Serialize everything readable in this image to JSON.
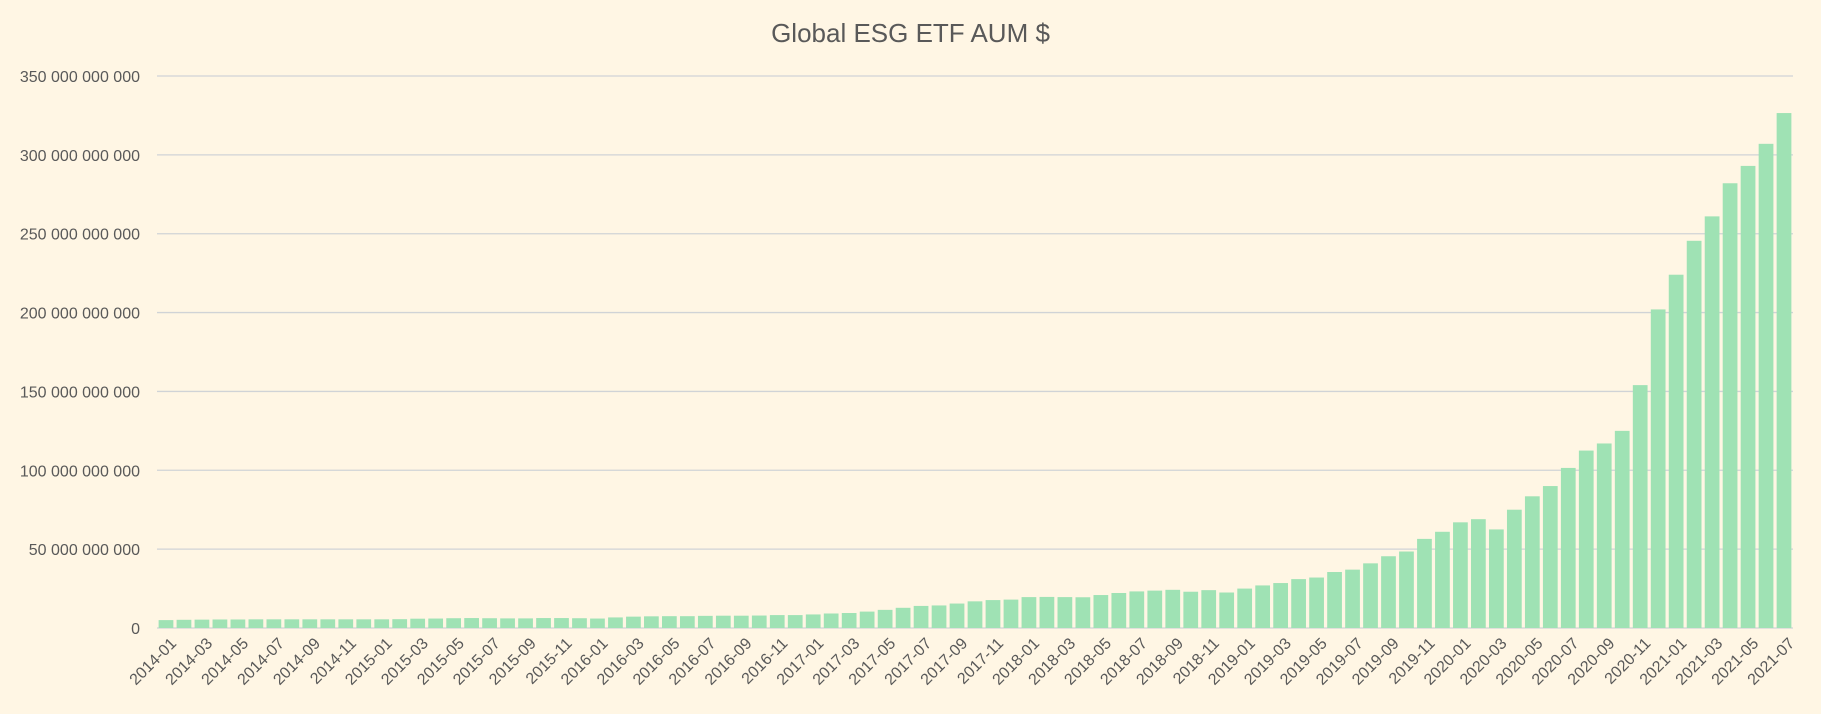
{
  "chart_data": {
    "type": "bar",
    "title": "Global ESG ETF AUM $",
    "xlabel": "",
    "ylabel": "",
    "ylim": [
      0,
      350000000000
    ],
    "yticks": [
      0,
      50000000000,
      100000000000,
      150000000000,
      200000000000,
      250000000000,
      300000000000,
      350000000000
    ],
    "ytick_labels": [
      "0",
      "50 000 000 000",
      "100 000 000 000",
      "150 000 000 000",
      "200 000 000 000",
      "250 000 000 000",
      "300 000 000 000",
      "350 000 000 000"
    ],
    "grid": true,
    "legend": "none",
    "colors": {
      "bar": "#9FE2B4",
      "grid": "#D0D3D6",
      "text": "#595959",
      "background": "#FFF6E4"
    },
    "categories": [
      "2014-01",
      "2014-02",
      "2014-03",
      "2014-04",
      "2014-05",
      "2014-06",
      "2014-07",
      "2014-08",
      "2014-09",
      "2014-10",
      "2014-11",
      "2014-12",
      "2015-01",
      "2015-02",
      "2015-03",
      "2015-04",
      "2015-05",
      "2015-06",
      "2015-07",
      "2015-08",
      "2015-09",
      "2015-10",
      "2015-11",
      "2015-12",
      "2016-01",
      "2016-02",
      "2016-03",
      "2016-04",
      "2016-05",
      "2016-06",
      "2016-07",
      "2016-08",
      "2016-09",
      "2016-10",
      "2016-11",
      "2016-12",
      "2017-01",
      "2017-02",
      "2017-03",
      "2017-04",
      "2017-05",
      "2017-06",
      "2017-07",
      "2017-08",
      "2017-09",
      "2017-10",
      "2017-11",
      "2017-12",
      "2018-01",
      "2018-02",
      "2018-03",
      "2018-04",
      "2018-05",
      "2018-06",
      "2018-07",
      "2018-08",
      "2018-09",
      "2018-10",
      "2018-11",
      "2018-12",
      "2019-01",
      "2019-02",
      "2019-03",
      "2019-04",
      "2019-05",
      "2019-06",
      "2019-07",
      "2019-08",
      "2019-09",
      "2019-10",
      "2019-11",
      "2019-12",
      "2020-01",
      "2020-02",
      "2020-03",
      "2020-04",
      "2020-05",
      "2020-06",
      "2020-07",
      "2020-08",
      "2020-09",
      "2020-10",
      "2020-11",
      "2020-12",
      "2021-01",
      "2021-02",
      "2021-03",
      "2021-04",
      "2021-05",
      "2021-06",
      "2021-07"
    ],
    "labeled_categories": [
      "2014-01",
      "2014-03",
      "2014-05",
      "2014-07",
      "2014-09",
      "2014-11",
      "2015-01",
      "2015-03",
      "2015-05",
      "2015-07",
      "2015-09",
      "2015-11",
      "2016-01",
      "2016-03",
      "2016-05",
      "2016-07",
      "2016-09",
      "2016-11",
      "2017-01",
      "2017-03",
      "2017-05",
      "2017-07",
      "2017-09",
      "2017-11",
      "2018-01",
      "2018-03",
      "2018-05",
      "2018-07",
      "2018-09",
      "2018-11",
      "2019-01",
      "2019-03",
      "2019-05",
      "2019-07",
      "2019-09",
      "2019-11",
      "2020-01",
      "2020-03",
      "2020-05",
      "2020-07",
      "2020-09",
      "2020-11",
      "2021-01",
      "2021-03",
      "2021-05",
      "2021-07"
    ],
    "series": [
      {
        "values": [
          5000000000,
          5200000000,
          5300000000,
          5400000000,
          5400000000,
          5500000000,
          5500000000,
          5500000000,
          5500000000,
          5500000000,
          5500000000,
          5500000000,
          5500000000,
          5600000000,
          5900000000,
          6000000000,
          6200000000,
          6300000000,
          6200000000,
          6100000000,
          6100000000,
          6300000000,
          6300000000,
          6200000000,
          6000000000,
          6700000000,
          7200000000,
          7400000000,
          7500000000,
          7500000000,
          7700000000,
          7800000000,
          7800000000,
          7900000000,
          8200000000,
          8200000000,
          8600000000,
          9200000000,
          9500000000,
          10400000000,
          11500000000,
          12800000000,
          14000000000,
          14300000000,
          15500000000,
          16900000000,
          17700000000,
          18000000000,
          19600000000,
          19700000000,
          19600000000,
          19500000000,
          20900000000,
          22200000000,
          23200000000,
          23700000000,
          24200000000,
          23000000000,
          24000000000,
          22500000000,
          25000000000,
          27000000000,
          28500000000,
          31000000000,
          32000000000,
          35500000000,
          37000000000,
          41000000000,
          45500000000,
          48500000000,
          56500000000,
          61000000000,
          67000000000,
          69000000000,
          62500000000,
          75000000000,
          83500000000,
          90000000000,
          101500000000,
          112500000000,
          117000000000,
          125000000000,
          154000000000,
          202000000000,
          224000000000,
          245500000000,
          261000000000,
          282000000000,
          293000000000,
          307000000000,
          326500000000
        ]
      }
    ]
  }
}
